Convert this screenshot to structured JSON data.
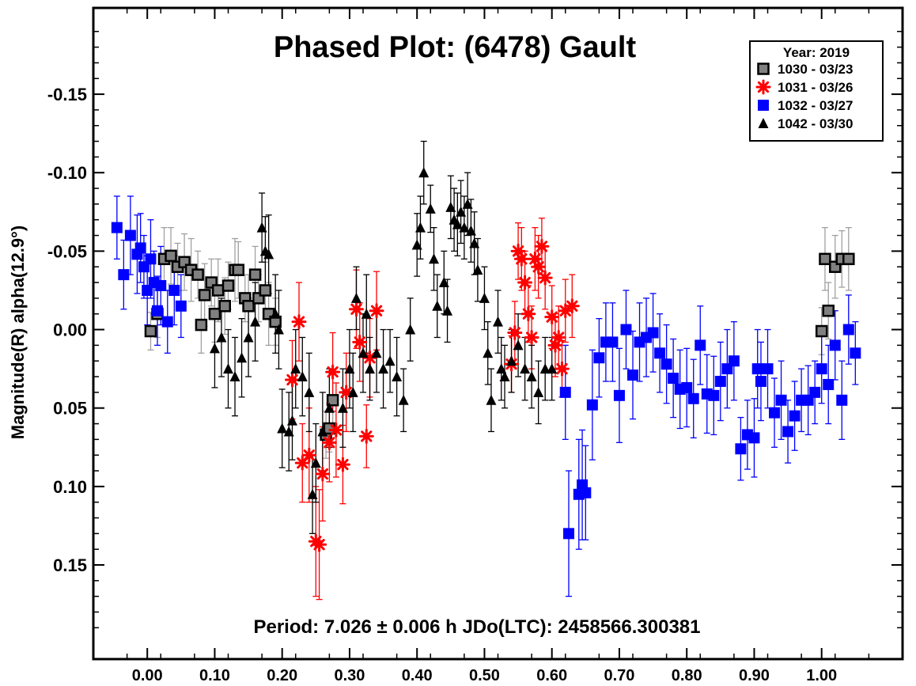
{
  "chart_data": {
    "type": "scatter",
    "title": "Phased Plot: (6478) Gault",
    "footer": "Period: 7.026 ± 0.006 h  JDo(LTC): 2458566.300381",
    "xlabel": "",
    "ylabel": "Magnitude(R) alpha(12.9°)",
    "xlim": [
      -0.08,
      1.12
    ],
    "ylim": [
      0.21,
      -0.205
    ],
    "y_inverted": true,
    "xticks": [
      0.0,
      0.1,
      0.2,
      0.3,
      0.4,
      0.5,
      0.6,
      0.7,
      0.8,
      0.9,
      1.0
    ],
    "xtick_labels": [
      "0.00",
      "0.10",
      "0.20",
      "0.30",
      "0.40",
      "0.50",
      "0.60",
      "0.70",
      "0.80",
      "0.90",
      "1.00"
    ],
    "yticks": [
      -0.15,
      -0.1,
      -0.05,
      0.0,
      0.05,
      0.1,
      0.15
    ],
    "ytick_labels": [
      "-0.15",
      "-0.10",
      "-0.05",
      "0.00",
      "0.05",
      "0.10",
      "0.15"
    ],
    "grid": false,
    "legend": {
      "title": "Year: 2019",
      "placement": "top-right"
    },
    "series": [
      {
        "name": "1030 - 03/23",
        "marker": "square",
        "color": "#808080",
        "err_color": "#a0a0a0",
        "x": [
          0.005,
          0.015,
          0.025,
          0.035,
          0.045,
          0.055,
          0.065,
          0.075,
          0.08,
          0.085,
          0.095,
          0.1,
          0.105,
          0.115,
          0.12,
          0.13,
          0.135,
          0.145,
          0.15,
          0.16,
          0.165,
          0.175,
          0.18,
          0.19,
          0.265,
          0.27,
          0.275,
          1.0,
          1.005,
          1.01,
          1.02,
          1.03,
          1.04
        ],
        "y": [
          0.001,
          -0.01,
          -0.045,
          -0.047,
          -0.04,
          -0.043,
          -0.038,
          -0.035,
          -0.003,
          -0.022,
          -0.03,
          -0.01,
          -0.025,
          -0.015,
          -0.028,
          -0.038,
          -0.038,
          -0.02,
          -0.015,
          -0.035,
          -0.02,
          -0.025,
          -0.01,
          -0.005,
          0.067,
          0.063,
          0.045,
          0.001,
          -0.045,
          -0.012,
          -0.04,
          -0.045,
          -0.045
        ],
        "err": [
          0.012,
          0.015,
          0.02,
          0.018,
          0.015,
          0.018,
          0.02,
          0.015,
          0.018,
          0.02,
          0.015,
          0.018,
          0.02,
          0.018,
          0.015,
          0.02,
          0.018,
          0.015,
          0.02,
          0.018,
          0.015,
          0.018,
          0.02,
          0.015,
          0.015,
          0.015,
          0.02,
          0.015,
          0.02,
          0.018,
          0.02,
          0.018,
          0.02
        ]
      },
      {
        "name": "1031 - 03/26",
        "marker": "asterisk",
        "color": "#ff0000",
        "err_color": "#ff0000",
        "x": [
          0.215,
          0.225,
          0.23,
          0.24,
          0.25,
          0.255,
          0.26,
          0.27,
          0.275,
          0.28,
          0.29,
          0.295,
          0.31,
          0.315,
          0.325,
          0.33,
          0.34,
          0.54,
          0.545,
          0.55,
          0.555,
          0.56,
          0.565,
          0.57,
          0.575,
          0.58,
          0.585,
          0.59,
          0.6,
          0.605,
          0.61,
          0.615,
          0.62,
          0.63
        ],
        "y": [
          0.032,
          -0.005,
          0.085,
          0.08,
          0.135,
          0.137,
          0.092,
          0.072,
          0.027,
          0.064,
          0.086,
          0.04,
          -0.013,
          0.008,
          0.068,
          0.018,
          -0.012,
          0.022,
          0.002,
          -0.05,
          -0.045,
          -0.03,
          -0.01,
          0.005,
          -0.045,
          -0.04,
          -0.053,
          -0.033,
          -0.008,
          0.01,
          0.005,
          0.025,
          -0.012,
          -0.015
        ],
        "err": [
          0.025,
          0.025,
          0.025,
          0.03,
          0.035,
          0.035,
          0.03,
          0.025,
          0.025,
          0.03,
          0.025,
          0.025,
          0.025,
          0.025,
          0.02,
          0.025,
          0.025,
          0.018,
          0.02,
          0.018,
          0.02,
          0.02,
          0.018,
          0.02,
          0.02,
          0.02,
          0.018,
          0.02,
          0.02,
          0.02,
          0.02,
          0.018,
          0.02,
          0.02
        ]
      },
      {
        "name": "1032 - 03/27",
        "marker": "square",
        "color": "#0000ff",
        "err_color": "#0000ff",
        "x": [
          -0.045,
          -0.035,
          -0.025,
          -0.015,
          -0.01,
          -0.005,
          0.0,
          0.005,
          0.01,
          0.015,
          0.02,
          0.03,
          0.04,
          0.05,
          0.62,
          0.625,
          0.64,
          0.645,
          0.65,
          0.66,
          0.67,
          0.68,
          0.69,
          0.7,
          0.71,
          0.72,
          0.73,
          0.74,
          0.75,
          0.76,
          0.77,
          0.78,
          0.79,
          0.8,
          0.81,
          0.82,
          0.83,
          0.84,
          0.85,
          0.86,
          0.87,
          0.88,
          0.89,
          0.9,
          0.905,
          0.91,
          0.92,
          0.93,
          0.94,
          0.95,
          0.96,
          0.97,
          0.98,
          0.99,
          1.0,
          1.01,
          1.02,
          1.03,
          1.04,
          1.05
        ],
        "y": [
          -0.065,
          -0.035,
          -0.06,
          -0.048,
          -0.052,
          -0.04,
          -0.025,
          -0.045,
          -0.03,
          -0.012,
          -0.028,
          -0.005,
          -0.025,
          -0.015,
          0.04,
          0.13,
          0.105,
          0.099,
          0.104,
          0.048,
          0.018,
          0.008,
          0.008,
          0.042,
          0.0,
          0.029,
          0.008,
          0.005,
          0.002,
          0.015,
          0.022,
          0.031,
          0.038,
          0.037,
          0.044,
          0.01,
          0.041,
          0.042,
          0.033,
          0.025,
          0.02,
          0.076,
          0.067,
          0.069,
          0.025,
          0.033,
          0.025,
          0.053,
          0.045,
          0.065,
          0.055,
          0.045,
          0.045,
          0.04,
          0.025,
          0.035,
          0.01,
          0.045,
          0.0,
          0.015
        ],
        "err": [
          0.02,
          0.022,
          0.025,
          0.025,
          0.022,
          0.02,
          0.022,
          0.025,
          0.02,
          0.022,
          0.025,
          0.02,
          0.022,
          0.02,
          0.03,
          0.04,
          0.035,
          0.035,
          0.03,
          0.035,
          0.025,
          0.025,
          0.025,
          0.03,
          0.025,
          0.028,
          0.025,
          0.025,
          0.025,
          0.025,
          0.025,
          0.025,
          0.025,
          0.025,
          0.025,
          0.025,
          0.025,
          0.025,
          0.025,
          0.025,
          0.025,
          0.02,
          0.022,
          0.025,
          0.025,
          0.025,
          0.025,
          0.022,
          0.025,
          0.02,
          0.022,
          0.02,
          0.022,
          0.02,
          0.022,
          0.025,
          0.022,
          0.025,
          0.022,
          0.02
        ]
      },
      {
        "name": "1042 - 03/30",
        "marker": "triangle",
        "color": "#000000",
        "err_color": "#000000",
        "x": [
          0.1,
          0.11,
          0.12,
          0.13,
          0.14,
          0.15,
          0.16,
          0.17,
          0.175,
          0.18,
          0.19,
          0.195,
          0.2,
          0.21,
          0.215,
          0.22,
          0.23,
          0.24,
          0.245,
          0.25,
          0.26,
          0.27,
          0.29,
          0.3,
          0.305,
          0.31,
          0.32,
          0.325,
          0.33,
          0.34,
          0.35,
          0.36,
          0.37,
          0.38,
          0.39,
          0.4,
          0.405,
          0.41,
          0.42,
          0.425,
          0.43,
          0.44,
          0.445,
          0.45,
          0.455,
          0.46,
          0.465,
          0.47,
          0.475,
          0.48,
          0.485,
          0.49,
          0.5,
          0.505,
          0.51,
          0.52,
          0.525,
          0.53,
          0.54,
          0.55,
          0.56,
          0.57,
          0.58,
          0.59,
          0.6
        ],
        "y": [
          0.012,
          0.005,
          0.025,
          0.03,
          0.018,
          0.005,
          -0.005,
          -0.065,
          -0.05,
          -0.048,
          -0.01,
          0.0,
          0.063,
          0.065,
          0.058,
          0.025,
          0.03,
          0.04,
          0.105,
          0.085,
          0.065,
          0.05,
          0.05,
          0.025,
          0.04,
          -0.02,
          0.015,
          -0.01,
          0.025,
          0.015,
          0.025,
          0.02,
          0.03,
          0.045,
          0.0,
          -0.054,
          -0.065,
          -0.1,
          -0.077,
          -0.045,
          -0.015,
          -0.03,
          -0.012,
          -0.078,
          -0.07,
          -0.067,
          -0.075,
          -0.065,
          -0.08,
          -0.063,
          -0.055,
          -0.038,
          -0.02,
          0.015,
          0.045,
          -0.005,
          0.025,
          0.03,
          0.02,
          0.01,
          0.025,
          0.03,
          0.04,
          0.025,
          0.025
        ],
        "err": [
          0.025,
          0.025,
          0.025,
          0.025,
          0.025,
          0.025,
          0.025,
          0.022,
          0.022,
          0.025,
          0.025,
          0.025,
          0.025,
          0.025,
          0.025,
          0.025,
          0.025,
          0.025,
          0.025,
          0.025,
          0.025,
          0.025,
          0.025,
          0.025,
          0.025,
          0.02,
          0.025,
          0.025,
          0.02,
          0.025,
          0.025,
          0.02,
          0.025,
          0.02,
          0.02,
          0.02,
          0.02,
          0.02,
          0.015,
          0.02,
          0.02,
          0.02,
          0.02,
          0.02,
          0.02,
          0.02,
          0.02,
          0.02,
          0.02,
          0.02,
          0.02,
          0.02,
          0.02,
          0.02,
          0.02,
          0.02,
          0.02,
          0.02,
          0.02,
          0.02,
          0.02,
          0.02,
          0.02,
          0.02,
          0.02
        ]
      }
    ]
  }
}
